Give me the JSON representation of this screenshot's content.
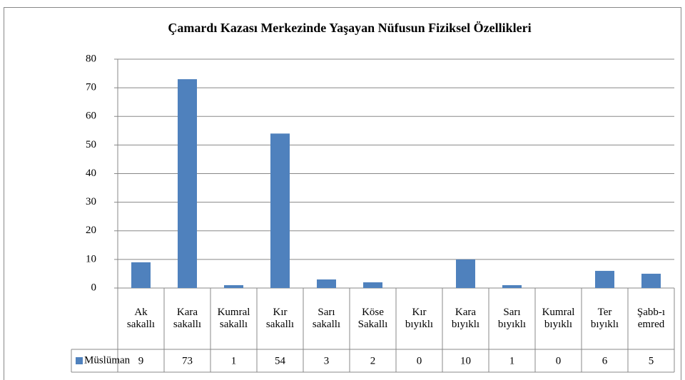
{
  "chart_data": {
    "type": "bar",
    "title": "Çamardı Kazası Merkezinde Yaşayan Nüfusun  Fiziksel Özellikleri",
    "categories": [
      "Ak sakallı",
      "Kara sakallı",
      "Kumral sakallı",
      "Kır sakallı",
      "Sarı sakallı",
      "Köse Sakallı",
      "Kır bıyıklı",
      "Kara bıyıklı",
      "Sarı bıyıklı",
      "Kumral bıyıklı",
      "Ter bıyıklı",
      "Şabb-ı emred"
    ],
    "series": [
      {
        "name": "Müslüman",
        "color": "#4f81bd",
        "values": [
          9,
          73,
          1,
          54,
          3,
          2,
          0,
          10,
          1,
          0,
          6,
          5
        ]
      }
    ],
    "ylim": [
      0,
      80
    ],
    "yticks": [
      0,
      10,
      20,
      30,
      40,
      50,
      60,
      70,
      80
    ],
    "grid": true
  }
}
